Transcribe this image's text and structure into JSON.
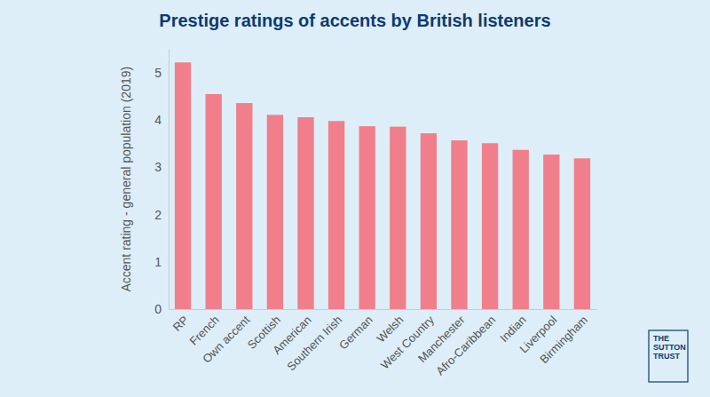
{
  "chart_data": {
    "type": "bar",
    "title": "Prestige ratings of accents by British listeners",
    "y_label": "Accent rating - general population (2019)",
    "source": "THE SUTTON TRUST",
    "categories": [
      "RP",
      "French",
      "Own accent",
      "Scottish",
      "American",
      "Southern Irish",
      "German",
      "Welsh",
      "West Country",
      "Manchester",
      "Afro-Caribbean",
      "Indian",
      "Liverpool",
      "Birmingham"
    ],
    "values": [
      5.22,
      4.55,
      4.36,
      4.11,
      4.06,
      3.98,
      3.87,
      3.86,
      3.72,
      3.57,
      3.51,
      3.37,
      3.27,
      3.19
    ],
    "color": "#f07f8b",
    "ylim": [
      0,
      5.5
    ],
    "yticks": [
      0,
      1,
      2,
      3,
      4,
      5
    ],
    "grid": false
  }
}
